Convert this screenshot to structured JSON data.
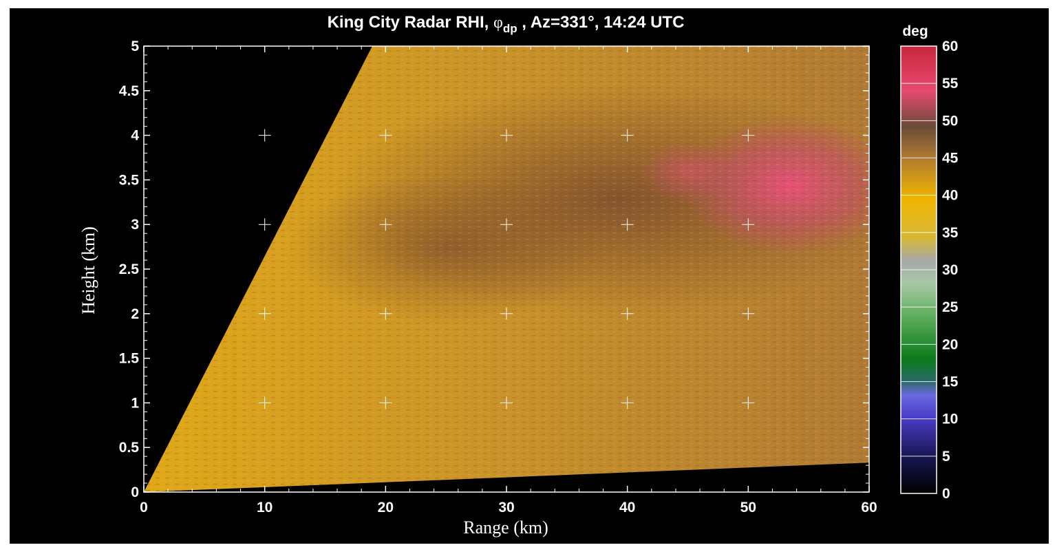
{
  "chart_data": {
    "type": "heatmap",
    "title": {
      "prefix": "King City Radar RHI, ",
      "symbol": "φ",
      "subscript": "dp",
      "suffix": " , Az=331°, 14:24 UTC"
    },
    "xlabel": "Range (km)",
    "ylabel": "Height (km)",
    "xlim": [
      0,
      60
    ],
    "ylim": [
      0,
      5
    ],
    "xticks": [
      "0",
      "10",
      "20",
      "30",
      "40",
      "50",
      "60"
    ],
    "yticks": [
      "0",
      "0.5",
      "1",
      "1.5",
      "2",
      "2.5",
      "3",
      "3.5",
      "4",
      "4.5",
      "5"
    ],
    "grid_crosses": {
      "x": [
        10,
        20,
        30,
        40,
        50
      ],
      "y": [
        1,
        2,
        3,
        4
      ]
    },
    "sector": {
      "top_edge_range_at_5km": 18.9,
      "bottom_edge_height_at_60km": 0.33
    },
    "colorbar": {
      "unit": "deg",
      "min": 0,
      "max": 60,
      "ticks": [
        "0",
        "5",
        "10",
        "15",
        "20",
        "25",
        "30",
        "35",
        "40",
        "45",
        "50",
        "55",
        "60"
      ]
    },
    "field_regions": [
      {
        "description": "near-surface and low-level",
        "phidp_deg": 38
      },
      {
        "description": "mid-range 2.5-4 km",
        "phidp_deg": 46
      },
      {
        "description": "far-range upper 3-4.5 km",
        "phidp_deg": 53
      }
    ],
    "colors": {
      "background": "#000000",
      "text": "#ffffff",
      "field_base": "#d9a21a",
      "field_brown": "#8a5a30",
      "field_pink": "#e84a76"
    }
  }
}
